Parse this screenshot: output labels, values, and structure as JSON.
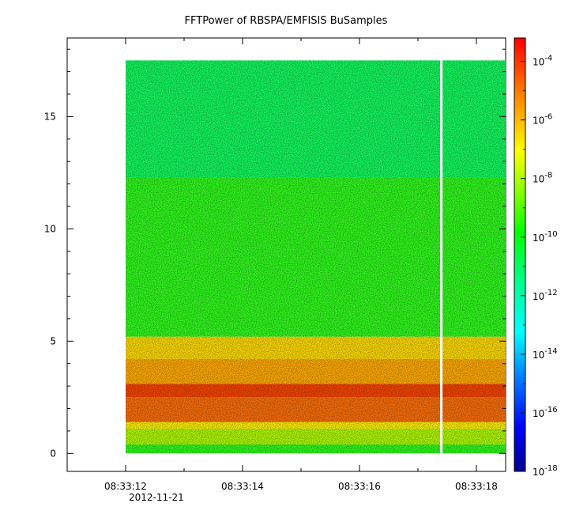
{
  "chart_data": {
    "type": "heatmap",
    "title": "FFTPower of RBSPA/EMFISIS  BuSamples",
    "xlabel": "",
    "ylabel": "",
    "x_tick_labels": [
      "08:33:12",
      "08:33:14",
      "08:33:16",
      "08:33:18"
    ],
    "x_date_label": "2012-11-21",
    "x_range": [
      "08:33:11.0",
      "08:33:18.5"
    ],
    "data_start": "08:33:12.0",
    "data_gap": "08:33:17.4",
    "y_ticks": [
      0,
      5,
      10,
      15
    ],
    "y_range": [
      -0.8,
      18.5
    ],
    "y_data_max": 17.5,
    "colorbar": {
      "scale": "log",
      "range_exponent": [
        -18,
        -3.2
      ],
      "tick_base": "10",
      "tick_exponents": [
        "-4",
        "-6",
        "-8",
        "-10",
        "-12",
        "-14",
        "-16",
        "-18"
      ],
      "colors": [
        "#000090",
        "#0000ff",
        "#0080ff",
        "#00ffff",
        "#00ff80",
        "#00ff00",
        "#80ff00",
        "#ffff00",
        "#ff8000",
        "#ff0000"
      ]
    },
    "bands": [
      {
        "y": [
          0.0,
          0.4
        ],
        "level": "green"
      },
      {
        "y": [
          0.4,
          1.1
        ],
        "level": "green-yellow"
      },
      {
        "y": [
          1.1,
          1.4
        ],
        "level": "yellow"
      },
      {
        "y": [
          1.4,
          2.5
        ],
        "level": "orange-red"
      },
      {
        "y": [
          2.5,
          3.1
        ],
        "level": "red"
      },
      {
        "y": [
          3.1,
          4.2
        ],
        "level": "orange"
      },
      {
        "y": [
          4.2,
          5.2
        ],
        "level": "yellow-orange"
      },
      {
        "y": [
          5.2,
          12.3
        ],
        "level": "green"
      },
      {
        "y": [
          12.3,
          17.5
        ],
        "level": "green-cyan"
      }
    ],
    "grid": false,
    "legend": "colorbar-right"
  }
}
